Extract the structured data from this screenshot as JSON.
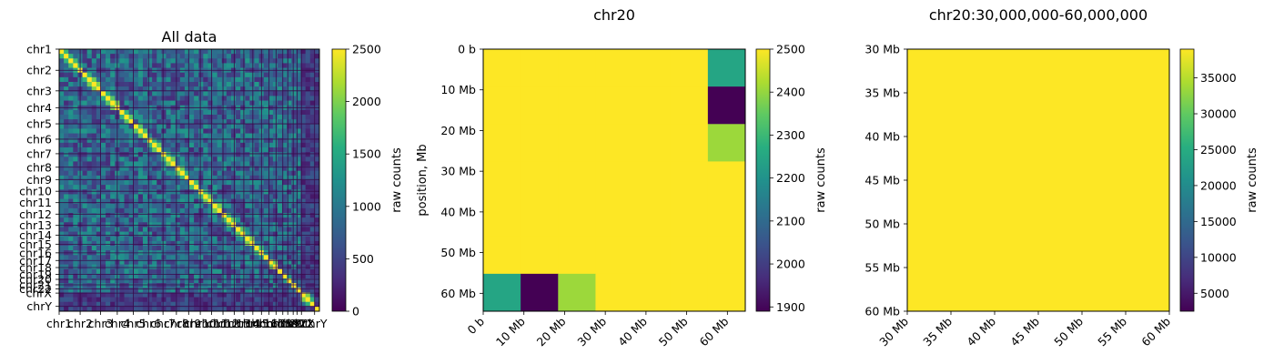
{
  "chart_data": [
    {
      "type": "heatmap",
      "title": "All data",
      "xlabel": "",
      "ylabel": "",
      "xtick_labels": [
        "chr1",
        "chr2",
        "chr3",
        "chr4",
        "chr5",
        "chr6",
        "chr7",
        "chr8",
        "chr9",
        "chr10",
        "chr11",
        "chr12",
        "chr13",
        "chr14",
        "chr15",
        "chr16",
        "chr17",
        "chr18",
        "chr19",
        "chr20",
        "chr21",
        "chr22",
        "chrX",
        "chrY"
      ],
      "ytick_labels": [
        "chr1",
        "chr2",
        "chr3",
        "chr4",
        "chr5",
        "chr6",
        "chr7",
        "chr8",
        "chr9",
        "chr10",
        "chr11",
        "chr12",
        "chr13",
        "chr14",
        "chr15",
        "chr16",
        "chr17",
        "chr18",
        "chr19",
        "chr20",
        "chr21",
        "chr22",
        "chrX",
        "chrY"
      ],
      "chrom_sizes_mb": [
        249,
        242,
        198,
        190,
        181,
        171,
        159,
        145,
        138,
        134,
        135,
        133,
        114,
        107,
        102,
        90,
        83,
        80,
        59,
        64,
        47,
        51,
        156,
        57
      ],
      "colorbar": {
        "label": "raw counts",
        "min": 0,
        "max": 2500,
        "ticks": [
          0,
          500,
          1000,
          1500,
          2000,
          2500
        ],
        "tick_labels": [
          "0",
          "500",
          "1000",
          "1500",
          "2000",
          "2500"
        ]
      },
      "colormap": "viridis",
      "notes": "Whole-genome contact matrix, strong diagonal blocks, saturated at 2500"
    },
    {
      "type": "heatmap",
      "title": "chr20",
      "xlabel": "",
      "ylabel": "position, Mb",
      "xtick_labels": [
        "0 b",
        "10 Mb",
        "20 Mb",
        "30 Mb",
        "40 Mb",
        "50 Mb",
        "60 Mb"
      ],
      "ytick_labels": [
        "0 b",
        "10 Mb",
        "20 Mb",
        "30 Mb",
        "40 Mb",
        "50 Mb",
        "60 Mb"
      ],
      "axis_range_mb": [
        0,
        64.4
      ],
      "tick_positions_mb": [
        0,
        10,
        20,
        30,
        40,
        50,
        60
      ],
      "bin_edges_mb": [
        0,
        9.2,
        18.4,
        27.6,
        36.8,
        46,
        55.2,
        64.4
      ],
      "matrix": [
        [
          2500,
          2500,
          2500,
          2500,
          2500,
          2500,
          2250
        ],
        [
          2500,
          2500,
          2500,
          2500,
          2500,
          2500,
          1890
        ],
        [
          2500,
          2500,
          2500,
          2500,
          2500,
          2500,
          2410
        ],
        [
          2500,
          2500,
          2500,
          2500,
          2500,
          2500,
          2500
        ],
        [
          2500,
          2500,
          2500,
          2500,
          2500,
          2500,
          2500
        ],
        [
          2500,
          2500,
          2500,
          2500,
          2500,
          2500,
          2500
        ],
        [
          2250,
          1890,
          2410,
          2500,
          2500,
          2500,
          2500
        ]
      ],
      "colorbar": {
        "label": "raw counts",
        "min": 1890,
        "max": 2500,
        "ticks": [
          1900,
          2000,
          2100,
          2200,
          2300,
          2400,
          2500
        ],
        "tick_labels": [
          "1900",
          "2000",
          "2100",
          "2200",
          "2300",
          "2400",
          "2500"
        ]
      },
      "colormap": "viridis"
    },
    {
      "type": "heatmap",
      "title": "chr20:30,000,000-60,000,000",
      "xlabel": "",
      "ylabel": "",
      "xtick_labels": [
        "30 Mb",
        "35 Mb",
        "40 Mb",
        "45 Mb",
        "50 Mb",
        "55 Mb",
        "60 Mb"
      ],
      "ytick_labels": [
        "30 Mb",
        "35 Mb",
        "40 Mb",
        "45 Mb",
        "50 Mb",
        "55 Mb",
        "60 Mb"
      ],
      "axis_range_mb": [
        30,
        60
      ],
      "tick_positions_mb": [
        30,
        35,
        40,
        45,
        50,
        55,
        60
      ],
      "fill_value": 39000,
      "colorbar": {
        "label": "raw counts",
        "min": 2500,
        "max": 39000,
        "ticks": [
          5000,
          10000,
          15000,
          20000,
          25000,
          30000,
          35000
        ],
        "tick_labels": [
          "5000",
          "10000",
          "15000",
          "20000",
          "25000",
          "30000",
          "35000"
        ]
      },
      "colormap": "viridis"
    }
  ]
}
